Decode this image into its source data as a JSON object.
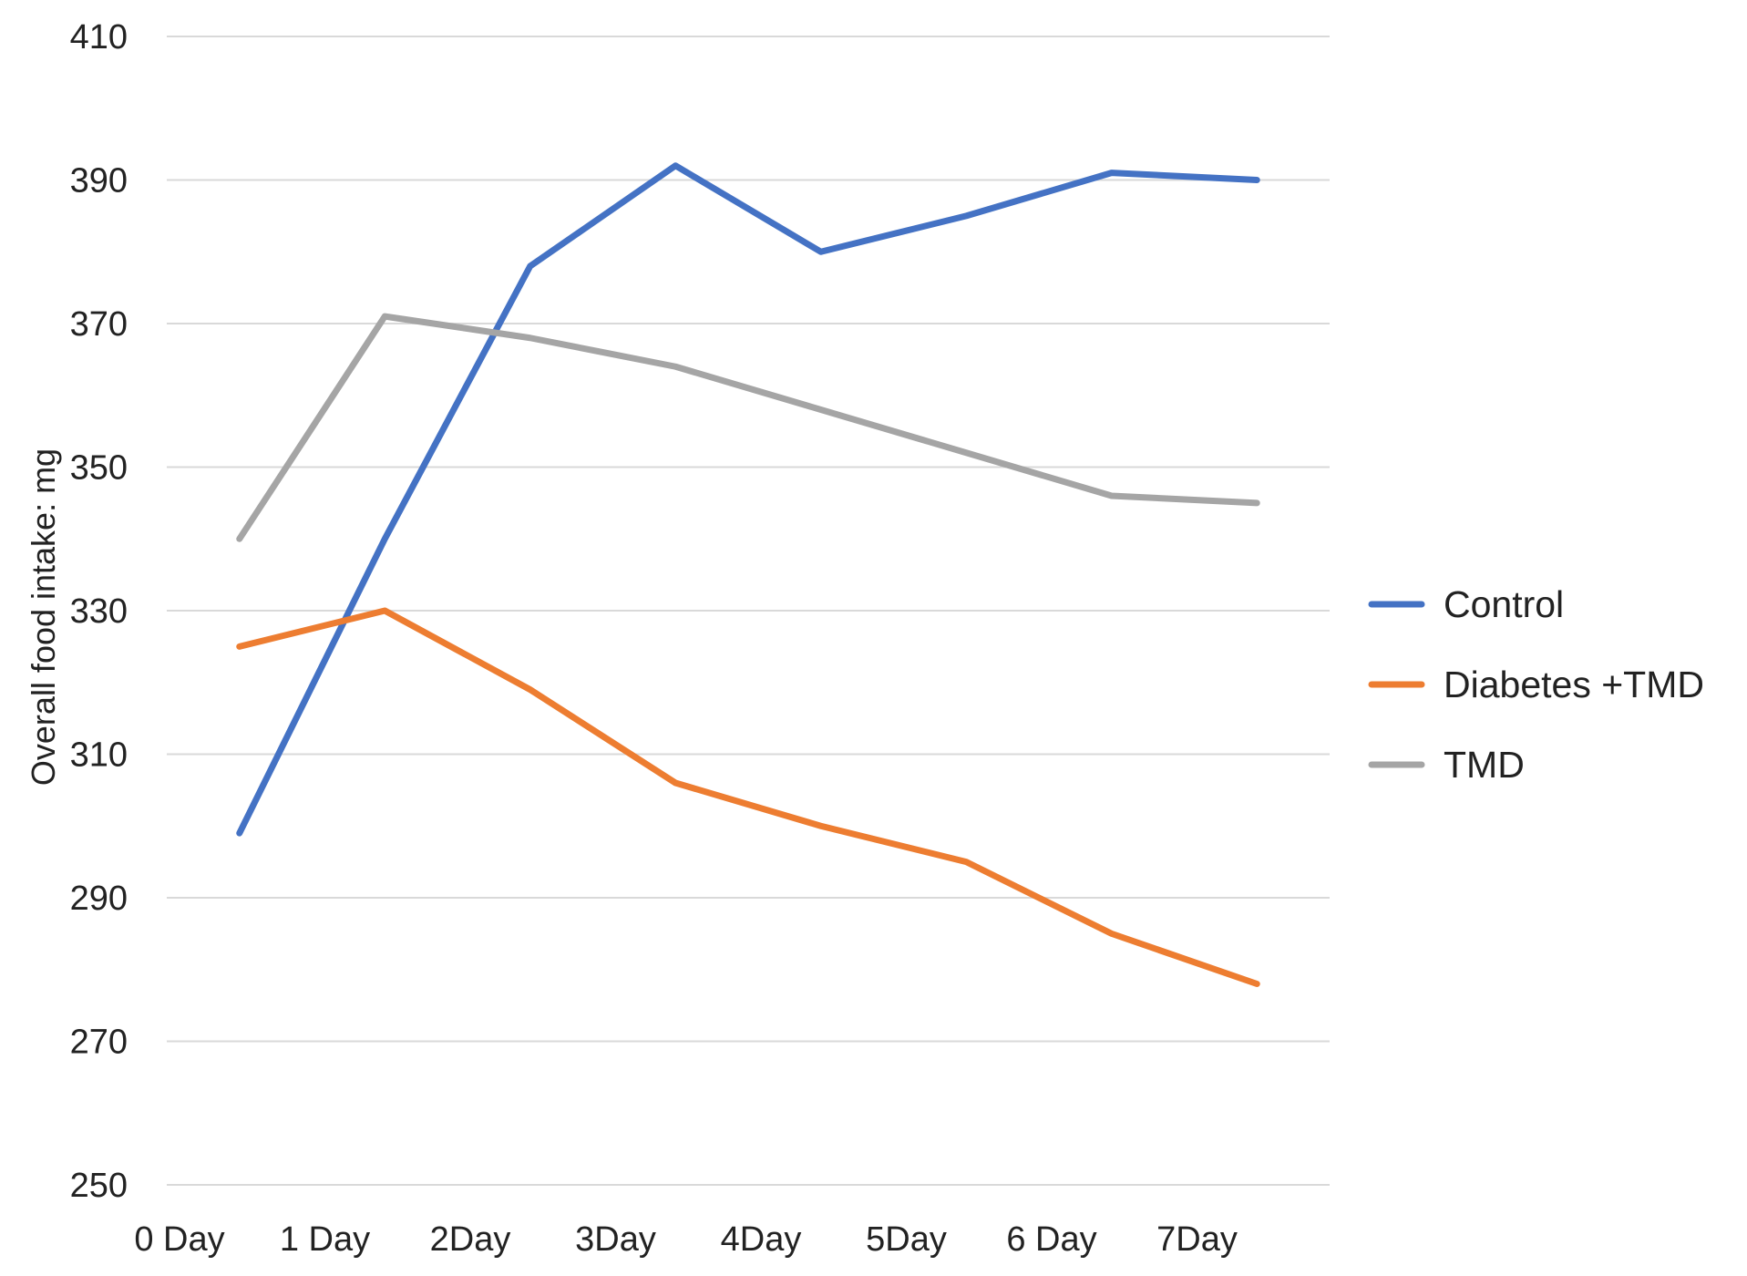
{
  "chart_data": {
    "type": "line",
    "title": "",
    "xlabel": "",
    "ylabel": "Overall food intake: mg",
    "categories": [
      "0 Day",
      "1 Day",
      "2Day",
      "3Day",
      "4Day",
      "5Day",
      "6 Day",
      "7Day"
    ],
    "ylim": [
      250,
      410
    ],
    "yticks": [
      "250",
      "270",
      "290",
      "310",
      "330",
      "350",
      "370",
      "390",
      "410"
    ],
    "grid": true,
    "legend_position": "right",
    "series": [
      {
        "name": "Control",
        "color": "#4472c4",
        "values": [
          299,
          340,
          378,
          392,
          380,
          385,
          391,
          390
        ]
      },
      {
        "name": "Diabetes +TMD",
        "color": "#ed7d31",
        "values": [
          325,
          330,
          319,
          306,
          300,
          295,
          285,
          278
        ]
      },
      {
        "name": "TMD",
        "color": "#a5a5a5",
        "values": [
          340,
          371,
          368,
          364,
          358,
          352,
          346,
          345
        ]
      }
    ]
  }
}
